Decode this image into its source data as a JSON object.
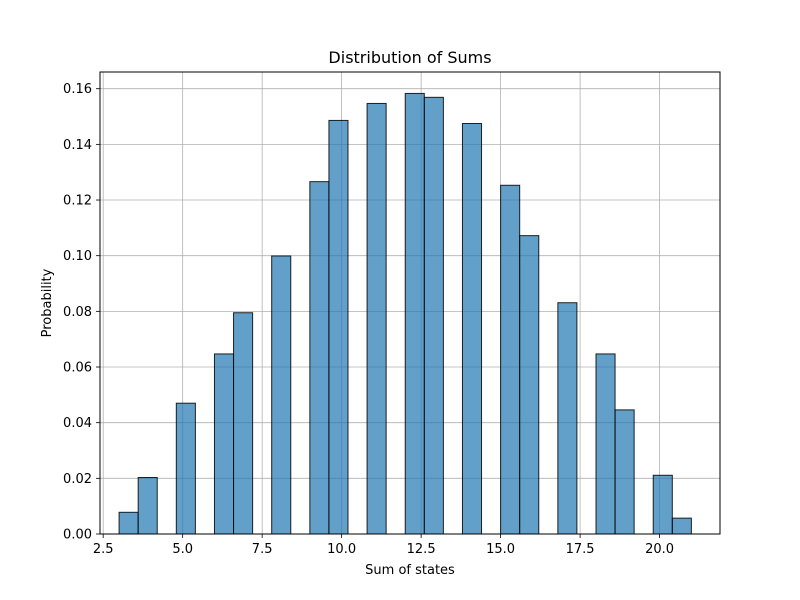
{
  "chart_data": {
    "type": "bar",
    "title": "Distribution of Sums",
    "xlabel": "Sum of states",
    "ylabel": "Probability",
    "xlim": [
      2.4,
      21.9
    ],
    "ylim": [
      0,
      0.166
    ],
    "grid": true,
    "bar_color": "#1f77b4",
    "edge_color": "#000000",
    "x_ticks": [
      2.5,
      5.0,
      7.5,
      10.0,
      12.5,
      15.0,
      17.5,
      20.0
    ],
    "x_tick_labels": [
      "2.5",
      "5.0",
      "7.5",
      "10.0",
      "12.5",
      "15.0",
      "17.5",
      "20.0"
    ],
    "y_ticks": [
      0.0,
      0.02,
      0.04,
      0.06,
      0.08,
      0.1,
      0.12,
      0.14,
      0.16
    ],
    "y_tick_labels": [
      "0.00",
      "0.02",
      "0.04",
      "0.06",
      "0.08",
      "0.10",
      "0.12",
      "0.14",
      "0.16"
    ],
    "bars": [
      {
        "x0": 3.0,
        "x1": 3.6,
        "value": 0.0078
      },
      {
        "x0": 3.6,
        "x1": 4.2,
        "value": 0.0203
      },
      {
        "x0": 4.8,
        "x1": 5.4,
        "value": 0.047
      },
      {
        "x0": 6.0,
        "x1": 6.6,
        "value": 0.0647
      },
      {
        "x0": 6.6,
        "x1": 7.2,
        "value": 0.0795
      },
      {
        "x0": 7.8,
        "x1": 8.4,
        "value": 0.0999
      },
      {
        "x0": 9.0,
        "x1": 9.6,
        "value": 0.1266
      },
      {
        "x0": 9.6,
        "x1": 10.2,
        "value": 0.1486
      },
      {
        "x0": 10.8,
        "x1": 11.4,
        "value": 0.1547
      },
      {
        "x0": 12.0,
        "x1": 12.6,
        "value": 0.1583
      },
      {
        "x0": 12.6,
        "x1": 13.2,
        "value": 0.1569
      },
      {
        "x0": 13.8,
        "x1": 14.4,
        "value": 0.1475
      },
      {
        "x0": 15.0,
        "x1": 15.6,
        "value": 0.1253
      },
      {
        "x0": 15.6,
        "x1": 16.2,
        "value": 0.1072
      },
      {
        "x0": 16.8,
        "x1": 17.4,
        "value": 0.0831
      },
      {
        "x0": 18.0,
        "x1": 18.6,
        "value": 0.0647
      },
      {
        "x0": 18.6,
        "x1": 19.2,
        "value": 0.0446
      },
      {
        "x0": 19.8,
        "x1": 20.4,
        "value": 0.0211
      },
      {
        "x0": 20.4,
        "x1": 21.0,
        "value": 0.0057
      }
    ]
  }
}
